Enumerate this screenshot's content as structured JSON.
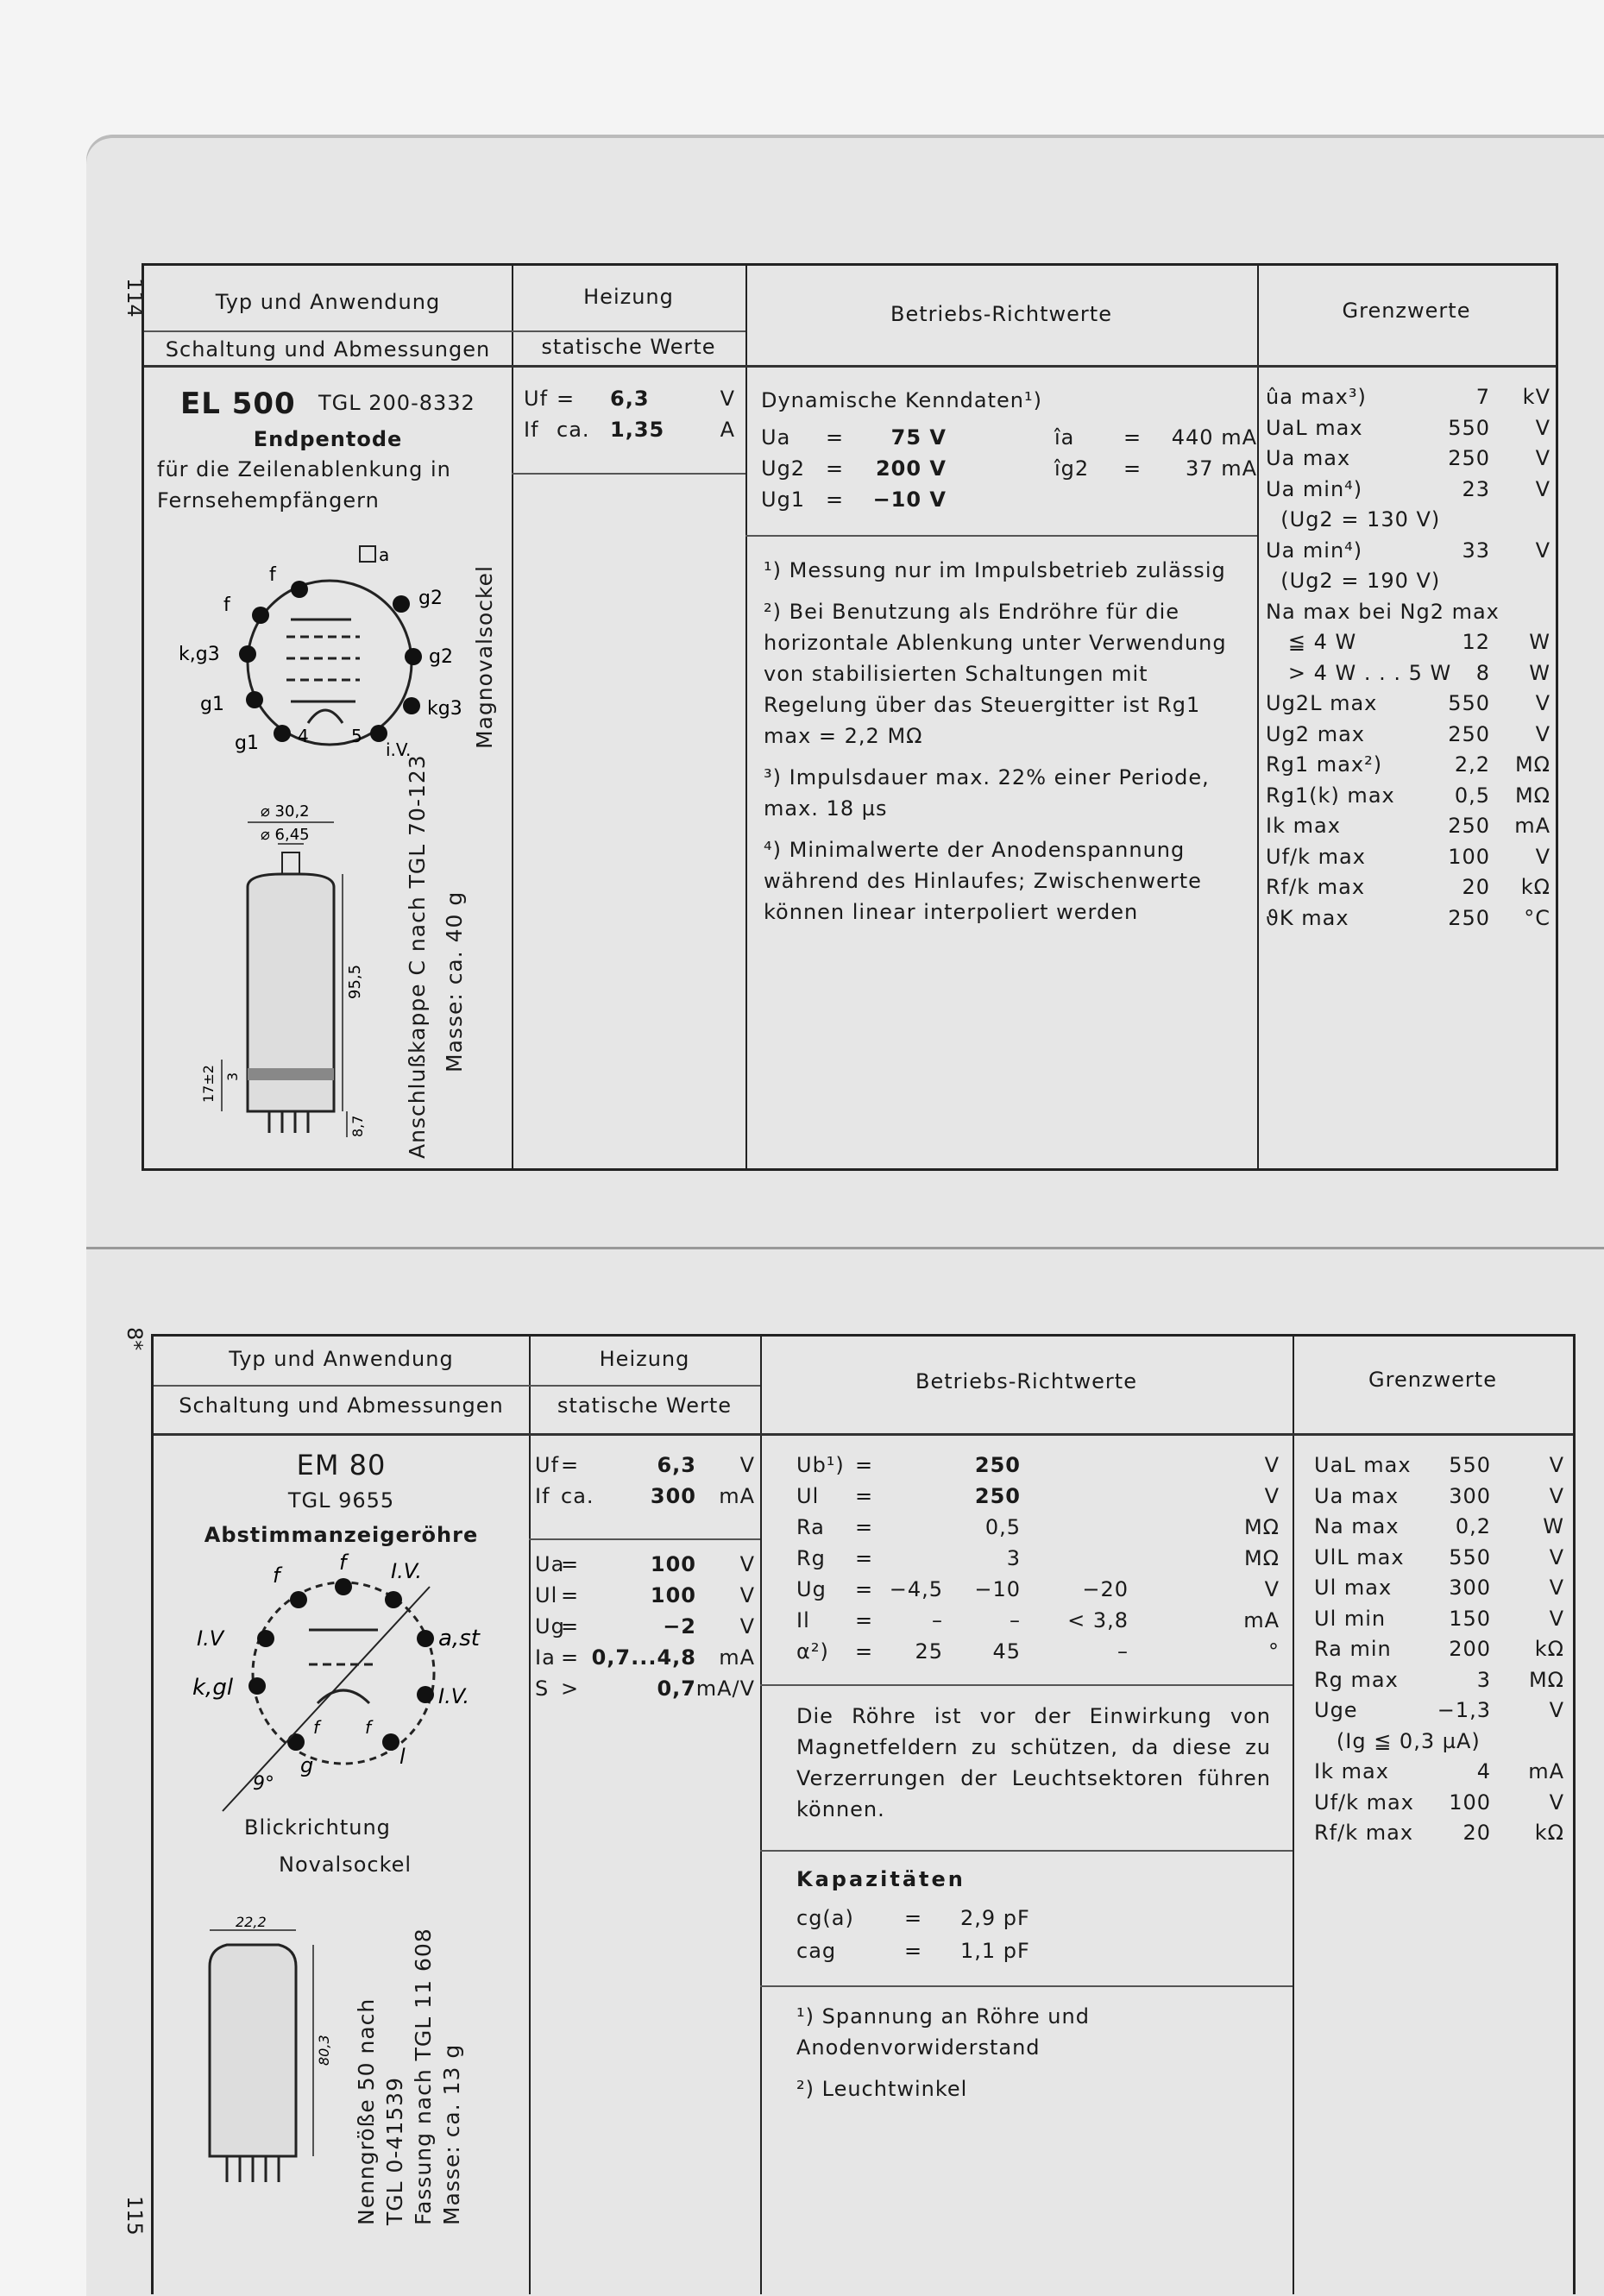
{
  "page_numbers": {
    "top": "114",
    "bottom_sig": "8*",
    "bottom": "115"
  },
  "headers": {
    "col1_top": "Typ und Anwendung",
    "col1_bottom": "Schaltung und Abmessungen",
    "col2_top": "Heizung",
    "col2_bottom": "statische Werte",
    "col3": "Betriebs-Richtwerte",
    "col4": "Grenzwerte"
  },
  "el500": {
    "type": "EL 500",
    "tgl": "TGL 200-8332",
    "name": "Endpentode",
    "use_line1": "für die Zeilenablenkung in",
    "use_line2": "Fernsehempfängern",
    "socket": "Magnovalsockel",
    "cap": "Anschlußkappe C nach TGL 70-123",
    "mass": "Masse: ca. 40 g",
    "pins": [
      "f",
      "f",
      "g2",
      "k,g3",
      "g2",
      "g1",
      "kg3",
      "g1",
      "4",
      "5",
      "i.V.",
      "a"
    ],
    "dims": [
      "⌀ 30,2",
      "⌀ 6,45",
      "95,5",
      "17±2",
      "3",
      "8,7"
    ],
    "heating": [
      {
        "sym": "Uf",
        "op": "=",
        "val": "6,3",
        "unit": "V"
      },
      {
        "sym": "If",
        "op": "ca.",
        "val": "1,35",
        "unit": "A"
      }
    ],
    "dyn_title": "Dynamische Kenndaten¹)",
    "dyn": [
      {
        "sym": "Ua",
        "op": "=",
        "val": "75 V",
        "sym2": "îa",
        "op2": "=",
        "val2": "440 mA"
      },
      {
        "sym": "Ug2",
        "op": "=",
        "val": "200 V",
        "sym2": "îg2",
        "op2": "=",
        "val2": "37 mA"
      },
      {
        "sym": "Ug1",
        "op": "=",
        "val": "−10 V",
        "sym2": "",
        "op2": "",
        "val2": ""
      }
    ],
    "footnotes": [
      "¹) Messung nur im Impulsbetrieb zulässig",
      "²) Bei Benutzung als Endröhre für die horizontale Ablenkung unter Verwendung von stabilisierten Schaltungen mit Regelung über das Steuergitter ist Rg1 max = 2,2 MΩ",
      "³) Impulsdauer max. 22% einer Periode, max. 18 µs",
      "⁴) Minimalwerte der Anodenspannung während des Hinlaufes; Zwischenwerte können linear interpoliert werden"
    ],
    "limits": [
      {
        "label": "ûa max³)",
        "val": "7",
        "unit": "kV"
      },
      {
        "label": "UaL max",
        "val": "550",
        "unit": "V"
      },
      {
        "label": "Ua max",
        "val": "250",
        "unit": "V"
      },
      {
        "label": "Ua min⁴)",
        "val": "23",
        "unit": "V"
      },
      {
        "label": "  (Ug2 = 130 V)",
        "val": "",
        "unit": ""
      },
      {
        "label": "Ua min⁴)",
        "val": "33",
        "unit": "V"
      },
      {
        "label": "  (Ug2 = 190 V)",
        "val": "",
        "unit": ""
      },
      {
        "label": "Na max bei Ng2 max",
        "val": "",
        "unit": ""
      },
      {
        "label": "   ≦ 4 W",
        "val": "12",
        "unit": "W"
      },
      {
        "label": "   > 4 W . . . 5 W",
        "val": "8",
        "unit": "W"
      },
      {
        "label": "Ug2L max",
        "val": "550",
        "unit": "V"
      },
      {
        "label": "Ug2 max",
        "val": "250",
        "unit": "V"
      },
      {
        "label": "Rg1 max²)",
        "val": "2,2",
        "unit": "MΩ"
      },
      {
        "label": "Rg1(k) max",
        "val": "0,5",
        "unit": "MΩ"
      },
      {
        "label": "Ik max",
        "val": "250",
        "unit": "mA"
      },
      {
        "label": "Uf/k max",
        "val": "100",
        "unit": "V"
      },
      {
        "label": "Rf/k max",
        "val": "20",
        "unit": "kΩ"
      },
      {
        "label": "ϑK max",
        "val": "250",
        "unit": "°C"
      }
    ]
  },
  "em80": {
    "type": "EM 80",
    "tgl": "TGL 9655",
    "name": "Abstimmanzeigeröhre",
    "view": "Blickrichtung",
    "socket": "Novalsockel",
    "pins": [
      "f",
      "f",
      "I.V.",
      "I.V",
      "a,st",
      "k,gl",
      "I.V.",
      "l",
      "g",
      "f",
      "f"
    ],
    "angle": "9°",
    "dims": [
      "22,2",
      "80,3"
    ],
    "side_text": [
      "Nenngröße 50 nach",
      "TGL 0-41539",
      "Fassung nach TGL 11 608",
      "Masse: ca. 13 g"
    ],
    "heating": [
      {
        "sym": "Uf",
        "op": "=",
        "val": "6,3",
        "unit": "V"
      },
      {
        "sym": "If",
        "op": "ca.",
        "val": "300",
        "unit": "mA"
      }
    ],
    "static": [
      {
        "sym": "Ua",
        "op": "=",
        "val": "100",
        "unit": "V"
      },
      {
        "sym": "Ul",
        "op": "=",
        "val": "100",
        "unit": "V"
      },
      {
        "sym": "Ug",
        "op": "=",
        "val": "−2",
        "unit": "V"
      },
      {
        "sym": "Ia",
        "op": "=",
        "val": "0,7...4,8",
        "unit": "mA"
      },
      {
        "sym": "S",
        "op": ">",
        "val": "0,7",
        "unit": "mA/V"
      }
    ],
    "operating": [
      {
        "sym": "Ub¹)",
        "op": "=",
        "v1": "",
        "v2": "250",
        "v3": "",
        "unit": "V"
      },
      {
        "sym": "Ul",
        "op": "=",
        "v1": "",
        "v2": "250",
        "v3": "",
        "unit": "V"
      },
      {
        "sym": "Ra",
        "op": "=",
        "v1": "",
        "v2": "0,5",
        "v3": "",
        "unit": "MΩ"
      },
      {
        "sym": "Rg",
        "op": "=",
        "v1": "",
        "v2": "3",
        "v3": "",
        "unit": "MΩ"
      },
      {
        "sym": "Ug",
        "op": "=",
        "v1": "−4,5",
        "v2": "−10",
        "v3": "−20",
        "unit": "V"
      },
      {
        "sym": "Il",
        "op": "=",
        "v1": "–",
        "v2": "–",
        "v3": "< 3,8",
        "unit": "mA"
      },
      {
        "sym": "α²)",
        "op": "=",
        "v1": "25",
        "v2": "45",
        "v3": "–",
        "unit": "°"
      }
    ],
    "note": "Die Röhre ist vor der Einwirkung von Magnetfeldern zu schützen, da diese zu Verzerrungen der Leuchtsektoren führen können.",
    "cap_title": "Kapazitäten",
    "caps": [
      {
        "sym": "cg(a)",
        "op": "=",
        "val": "2,9 pF"
      },
      {
        "sym": "cag",
        "op": "=",
        "val": "1,1 pF"
      }
    ],
    "footnotes": [
      "¹) Spannung an Röhre und Anodenvorwiderstand",
      "²) Leuchtwinkel"
    ],
    "limits": [
      {
        "label": "UaL max",
        "val": "550",
        "unit": "V"
      },
      {
        "label": "Ua max",
        "val": "300",
        "unit": "V"
      },
      {
        "label": "Na max",
        "val": "0,2",
        "unit": "W"
      },
      {
        "label": "UlL max",
        "val": "550",
        "unit": "V"
      },
      {
        "label": "Ul max",
        "val": "300",
        "unit": "V"
      },
      {
        "label": "Ul min",
        "val": "150",
        "unit": "V"
      },
      {
        "label": "Ra min",
        "val": "200",
        "unit": "kΩ"
      },
      {
        "label": "Rg max",
        "val": "3",
        "unit": "MΩ"
      },
      {
        "label": "Uge",
        "val": "−1,3",
        "unit": "V"
      },
      {
        "label": "   (Ig ≦ 0,3 µA)",
        "val": "",
        "unit": ""
      },
      {
        "label": "Ik max",
        "val": "4",
        "unit": "mA"
      },
      {
        "label": "Uf/k max",
        "val": "100",
        "unit": "V"
      },
      {
        "label": "Rf/k max",
        "val": "20",
        "unit": "kΩ"
      }
    ]
  }
}
